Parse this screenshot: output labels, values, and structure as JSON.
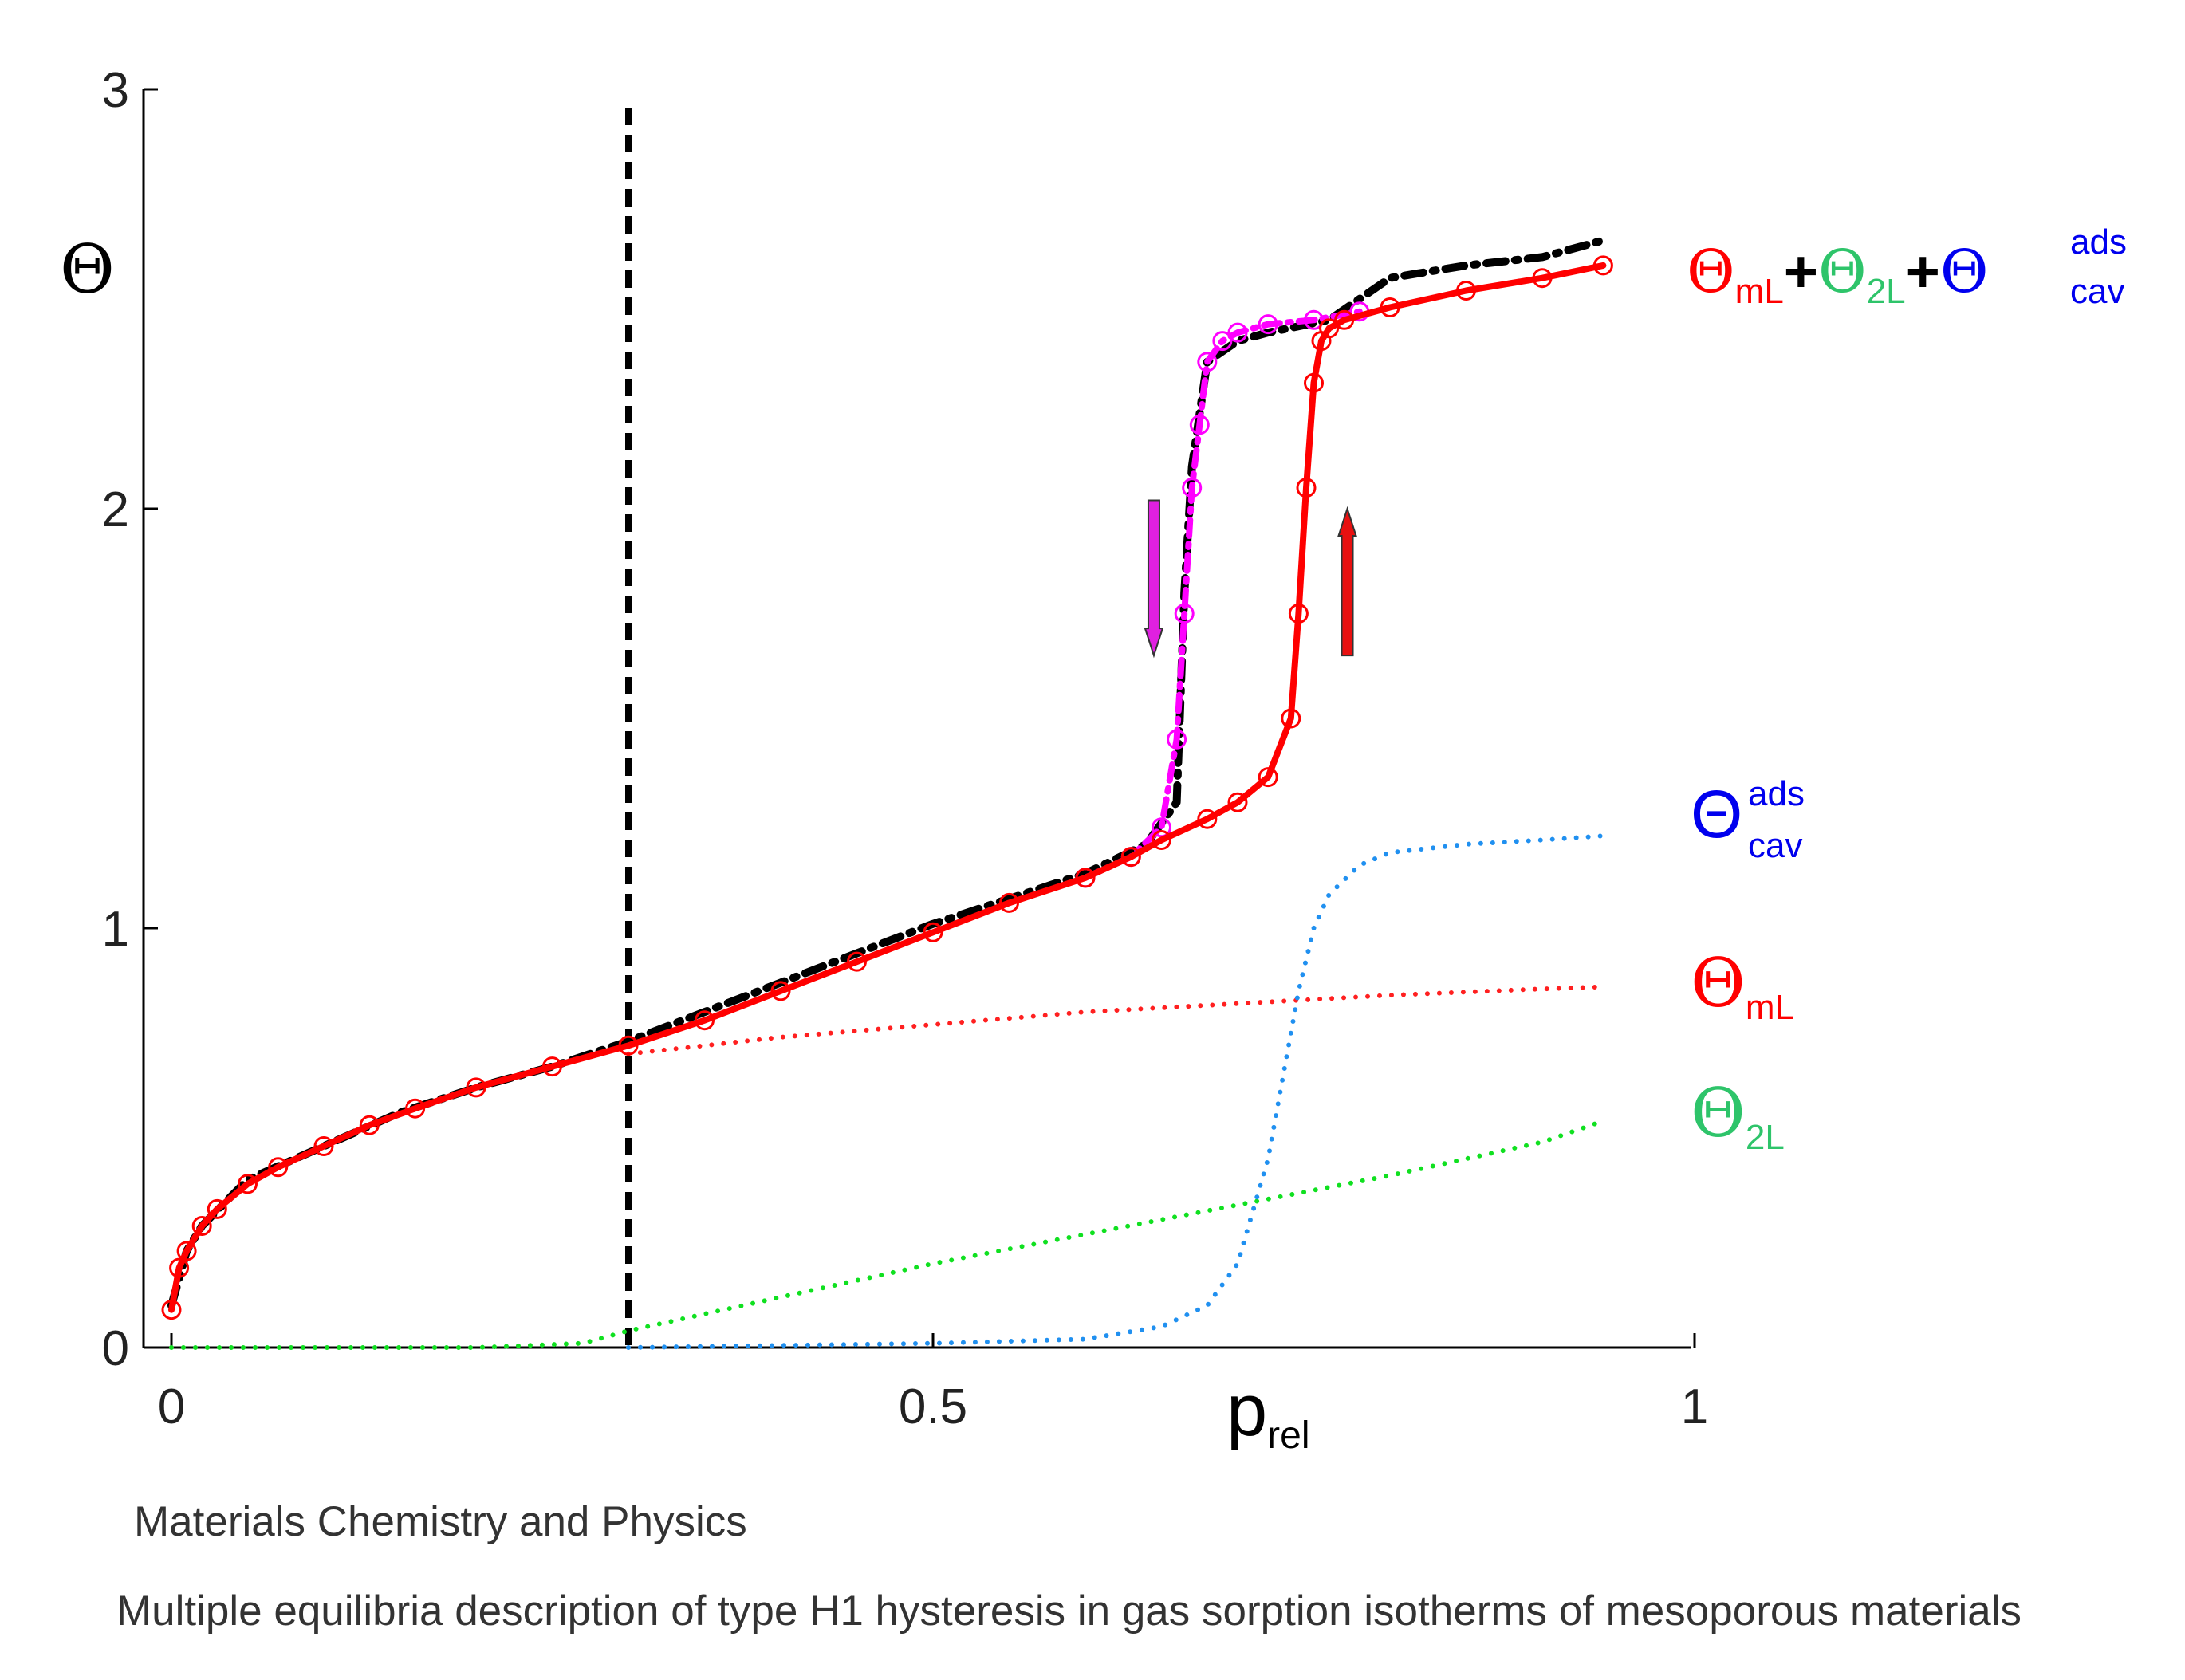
{
  "chart_data": {
    "type": "line",
    "xlabel": "p",
    "xlabel_sub": "rel",
    "ylabel": "Θ",
    "xlim": [
      0,
      1
    ],
    "ylim": [
      0,
      3
    ],
    "x_ticks": [
      {
        "value": 0,
        "label": "0"
      },
      {
        "value": 0.5,
        "label": "0.5"
      },
      {
        "value": 1,
        "label": "1"
      }
    ],
    "y_ticks": [
      {
        "value": 0,
        "label": "0"
      },
      {
        "value": 1,
        "label": "1"
      },
      {
        "value": 2,
        "label": "2"
      },
      {
        "value": 3,
        "label": "3"
      }
    ],
    "grid": false,
    "reference_lines": [
      {
        "orientation": "vertical",
        "x": 0.3,
        "style": "dashed",
        "color": "#000000"
      }
    ],
    "annotations": [
      {
        "type": "arrow",
        "direction": "down",
        "color": "#e020e0",
        "x": 0.645,
        "y_from": 2.02,
        "y_to": 1.65
      },
      {
        "type": "arrow",
        "direction": "up",
        "color": "#e81010",
        "x": 0.772,
        "y_from": 1.65,
        "y_to": 2.0
      }
    ],
    "series": [
      {
        "id": "adsorption_fit",
        "color": "#ff0000",
        "style": "solid-circles",
        "x": [
          0,
          0.005,
          0.01,
          0.02,
          0.03,
          0.05,
          0.07,
          0.1,
          0.13,
          0.16,
          0.2,
          0.25,
          0.3,
          0.35,
          0.4,
          0.45,
          0.5,
          0.55,
          0.6,
          0.63,
          0.65,
          0.68,
          0.7,
          0.72,
          0.735,
          0.74,
          0.745,
          0.75,
          0.755,
          0.76,
          0.77,
          0.8,
          0.85,
          0.9,
          0.94
        ],
        "y": [
          0.09,
          0.19,
          0.23,
          0.29,
          0.33,
          0.39,
          0.43,
          0.48,
          0.53,
          0.57,
          0.62,
          0.67,
          0.72,
          0.78,
          0.85,
          0.92,
          0.99,
          1.06,
          1.12,
          1.17,
          1.21,
          1.26,
          1.3,
          1.36,
          1.5,
          1.75,
          2.05,
          2.3,
          2.4,
          2.43,
          2.45,
          2.48,
          2.52,
          2.55,
          2.58
        ]
      },
      {
        "id": "desorption_fit",
        "color": "#ff00ff",
        "style": "dashdot-circles",
        "x": [
          0.6,
          0.63,
          0.65,
          0.66,
          0.665,
          0.67,
          0.675,
          0.68,
          0.69,
          0.7,
          0.72,
          0.75,
          0.78
        ],
        "y": [
          1.12,
          1.17,
          1.24,
          1.45,
          1.75,
          2.05,
          2.2,
          2.35,
          2.4,
          2.42,
          2.44,
          2.45,
          2.47
        ]
      },
      {
        "id": "experimental",
        "color": "#000000",
        "style": "dashdot",
        "x": [
          0,
          0.01,
          0.02,
          0.05,
          0.1,
          0.15,
          0.2,
          0.25,
          0.3,
          0.35,
          0.4,
          0.45,
          0.5,
          0.55,
          0.6,
          0.64,
          0.66,
          0.665,
          0.67,
          0.68,
          0.7,
          0.72,
          0.76,
          0.78,
          0.8,
          0.85,
          0.9,
          0.94
        ],
        "y": [
          0.1,
          0.23,
          0.29,
          0.4,
          0.48,
          0.56,
          0.62,
          0.67,
          0.73,
          0.8,
          0.87,
          0.94,
          1.01,
          1.07,
          1.13,
          1.2,
          1.3,
          1.8,
          2.1,
          2.35,
          2.4,
          2.42,
          2.45,
          2.5,
          2.55,
          2.58,
          2.6,
          2.64
        ]
      },
      {
        "id": "theta_mL_component",
        "color": "#ff2020",
        "style": "dotted",
        "x": [
          0.3,
          0.4,
          0.5,
          0.6,
          0.7,
          0.8,
          0.9,
          0.94
        ],
        "y": [
          0.7,
          0.74,
          0.77,
          0.8,
          0.82,
          0.84,
          0.855,
          0.86
        ]
      },
      {
        "id": "theta_2L_component",
        "color": "#10e020",
        "style": "dotted",
        "x": [
          0,
          0.1,
          0.2,
          0.27,
          0.3,
          0.4,
          0.5,
          0.6,
          0.7,
          0.8,
          0.9,
          0.94
        ],
        "y": [
          0,
          0,
          0,
          0.01,
          0.04,
          0.12,
          0.2,
          0.27,
          0.34,
          0.41,
          0.49,
          0.54
        ]
      },
      {
        "id": "theta_cav_component",
        "color": "#2090f0",
        "style": "dotted",
        "x": [
          0.3,
          0.5,
          0.6,
          0.65,
          0.68,
          0.7,
          0.72,
          0.73,
          0.74,
          0.75,
          0.76,
          0.78,
          0.8,
          0.85,
          0.9,
          0.94
        ],
        "y": [
          0,
          0.01,
          0.02,
          0.05,
          0.1,
          0.2,
          0.45,
          0.65,
          0.85,
          1.0,
          1.08,
          1.15,
          1.18,
          1.2,
          1.21,
          1.22
        ]
      }
    ]
  },
  "legend": {
    "total": {
      "parts": [
        {
          "symbol": "Θ",
          "sub": "mL",
          "sup": "",
          "color": "#ff0000"
        },
        {
          "symbol": "Θ",
          "sub": "2L",
          "sup": "",
          "color": "#2ec46a"
        },
        {
          "symbol": "Θ",
          "sub": "cav",
          "sup": "ads",
          "color": "#0000ee"
        }
      ],
      "operator": "+"
    },
    "cav": {
      "symbol": "Θ",
      "sub": "cav",
      "sup": "ads",
      "color": "#0000ee"
    },
    "mL": {
      "symbol": "Θ",
      "sub": "mL",
      "color": "#ff0000"
    },
    "twoL": {
      "symbol": "Θ",
      "sub": "2L",
      "color": "#2ec46a"
    }
  },
  "captions": {
    "journal": "Materials Chemistry and Physics",
    "title": "Multiple equilibria description of type H1 hysteresis in gas sorption isotherms of mesoporous materials"
  }
}
